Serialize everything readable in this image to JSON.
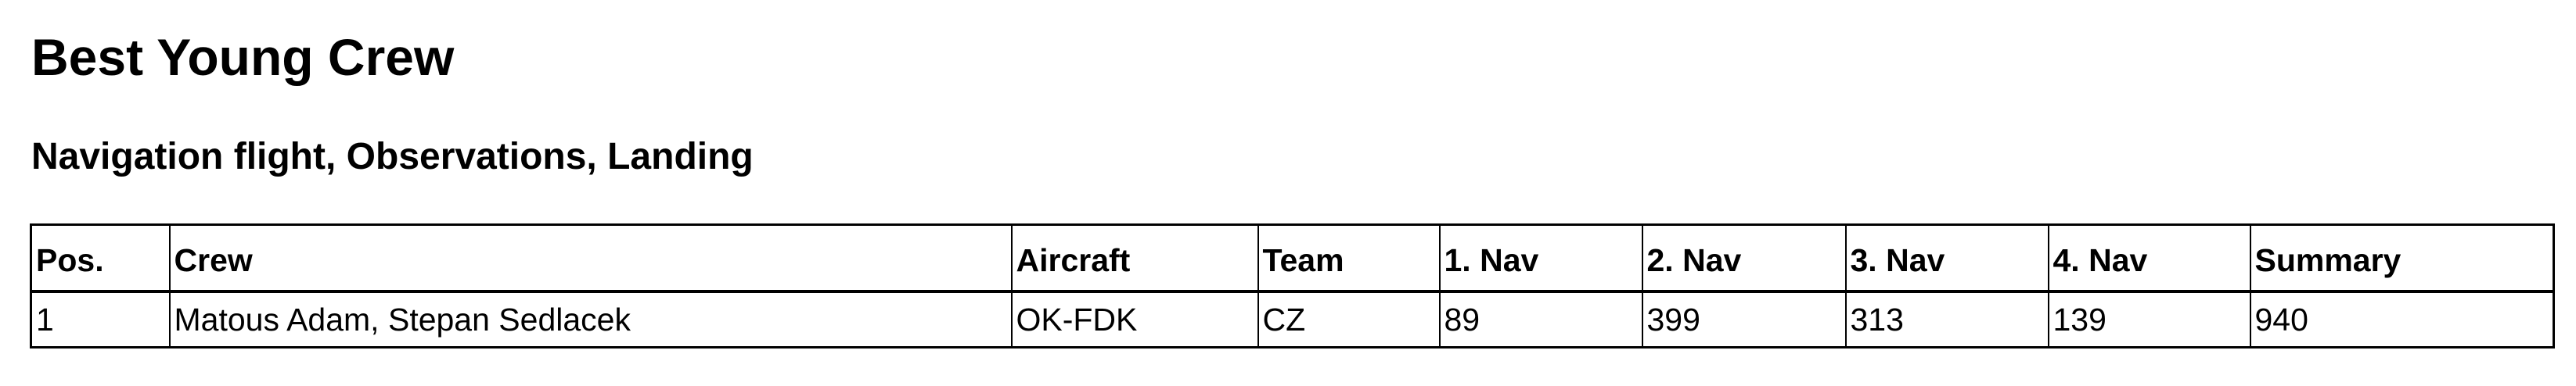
{
  "title": "Best Young Crew",
  "subtitle": "Navigation flight, Observations, Landing",
  "table": {
    "headers": [
      "Pos.",
      "Crew",
      "Aircraft",
      "Team",
      "1. Nav",
      "2. Nav",
      "3. Nav",
      "4. Nav",
      "Summary"
    ],
    "rows": [
      [
        "1",
        "Matous Adam, Stepan Sedlacek",
        "OK-FDK",
        "CZ",
        "89",
        "399",
        "313",
        "139",
        "940"
      ]
    ]
  }
}
